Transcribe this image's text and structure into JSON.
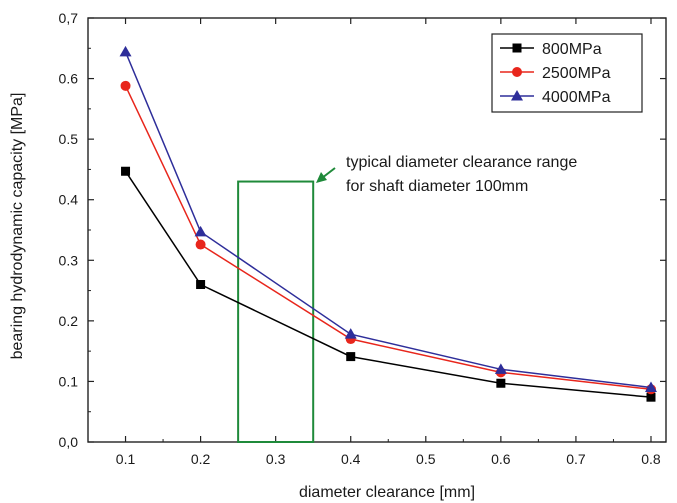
{
  "chart_data": {
    "type": "line",
    "title": "",
    "xlabel": "diameter clearance [mm]",
    "ylabel": "bearing hydrodynamic capacity  [MPa]",
    "xlim": [
      0.05,
      0.82
    ],
    "ylim": [
      0.0,
      0.7
    ],
    "x_ticks": [
      0.1,
      0.2,
      0.3,
      0.4,
      0.5,
      0.6,
      0.7,
      0.8
    ],
    "x_tick_labels": [
      "0.1",
      "0.2",
      "0.3",
      "0.4",
      "0.5",
      "0.6",
      "0.7",
      "0.8"
    ],
    "y_ticks": [
      0.0,
      0.1,
      0.2,
      0.3,
      0.4,
      0.5,
      0.6,
      0.7
    ],
    "y_tick_labels": [
      "0,0",
      "0.1",
      "0.2",
      "0.3",
      "0.4",
      "0.5",
      "0.6",
      "0,7"
    ],
    "grid": false,
    "legend_position": "top-right",
    "series": [
      {
        "name": "800MPa",
        "color": "#000000",
        "marker": "square",
        "x": [
          0.1,
          0.2,
          0.4,
          0.6,
          0.8
        ],
        "y": [
          0.447,
          0.26,
          0.141,
          0.097,
          0.074
        ]
      },
      {
        "name": "2500MPa",
        "color": "#e8261c",
        "marker": "circle",
        "x": [
          0.1,
          0.2,
          0.4,
          0.6,
          0.8
        ],
        "y": [
          0.588,
          0.326,
          0.17,
          0.115,
          0.087
        ]
      },
      {
        "name": "4000MPa",
        "color": "#2e2e9a",
        "marker": "triangle",
        "x": [
          0.1,
          0.2,
          0.4,
          0.6,
          0.8
        ],
        "y": [
          0.644,
          0.347,
          0.178,
          0.12,
          0.09
        ]
      }
    ],
    "annotation": {
      "lines": [
        "typical diameter clearance range",
        "for shaft diameter 100mm"
      ],
      "color": "#1f8a3a",
      "range_x": [
        0.25,
        0.35
      ],
      "range_y": [
        0.0,
        0.43
      ]
    }
  }
}
